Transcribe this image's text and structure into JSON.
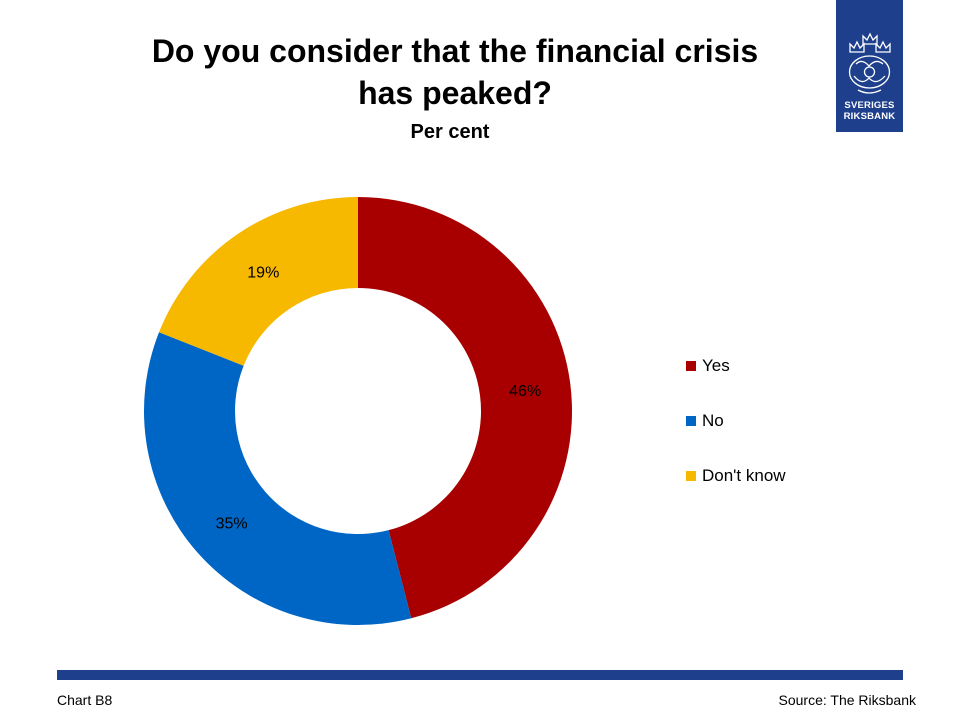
{
  "header": {
    "title_lines": [
      "Do you consider that the financial crisis",
      "has peaked?"
    ],
    "subtitle": "Per cent"
  },
  "logo": {
    "line1": "SVERIGES",
    "line2": "RIKSBANK",
    "color": "#1d3f8c"
  },
  "chart_data": {
    "type": "pie",
    "donut": true,
    "title": "Do you consider that the financial crisis has peaked?",
    "subtitle": "Per cent",
    "categories": [
      "Yes",
      "No",
      "Don't know"
    ],
    "values": [
      46,
      35,
      19
    ],
    "labels": [
      "46%",
      "35%",
      "19%"
    ],
    "colors": [
      "#a80000",
      "#0066c6",
      "#f7b800"
    ],
    "legend_position": "right"
  },
  "footer": {
    "left": "Chart B8",
    "right": "Source: The Riksbank"
  }
}
